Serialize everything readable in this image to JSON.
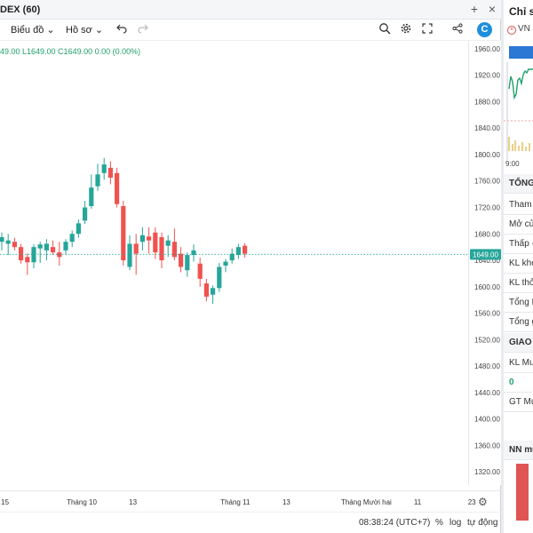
{
  "window": {
    "title": "DEX (60)",
    "add_label": "+",
    "close_label": "×"
  },
  "toolbar": {
    "chart_label": "Biểu đồ",
    "profile_label": "Hồ sơ",
    "chevron": "⌄",
    "undo_icon": "undo-icon",
    "redo_icon": "redo-icon"
  },
  "ohlc": {
    "text": "49.00  L1649.00  C1649.00  0.00 (0.00%)"
  },
  "chart_data": {
    "type": "candlestick",
    "y_ticks": [
      1960,
      1920,
      1880,
      1840,
      1800,
      1760,
      1720,
      1680,
      1640,
      1600,
      1560,
      1520,
      1480,
      1440,
      1400,
      1360,
      1320
    ],
    "ylim": [
      1300,
      1972
    ],
    "last_price": "1649.00",
    "last_price_value": 1649,
    "x_ticks": [
      {
        "label": "15",
        "i": 0.5
      },
      {
        "label": "Tháng 10",
        "i": 12.5
      },
      {
        "label": "13",
        "i": 20.5
      },
      {
        "label": "Tháng 11",
        "i": 36.5
      },
      {
        "label": "13",
        "i": 44.5
      },
      {
        "label": "Tháng Mười hai",
        "i": 57
      },
      {
        "label": "11",
        "i": 65
      },
      {
        "label": "23",
        "i": 73.5
      }
    ],
    "candles": [
      {
        "o": 1668,
        "h": 1682,
        "l": 1655,
        "c": 1675
      },
      {
        "o": 1665,
        "h": 1680,
        "l": 1648,
        "c": 1670
      },
      {
        "o": 1668,
        "h": 1674,
        "l": 1655,
        "c": 1660
      },
      {
        "o": 1660,
        "h": 1665,
        "l": 1635,
        "c": 1640
      },
      {
        "o": 1645,
        "h": 1650,
        "l": 1618,
        "c": 1637
      },
      {
        "o": 1637,
        "h": 1664,
        "l": 1628,
        "c": 1660
      },
      {
        "o": 1658,
        "h": 1668,
        "l": 1636,
        "c": 1664
      },
      {
        "o": 1655,
        "h": 1672,
        "l": 1640,
        "c": 1665
      },
      {
        "o": 1660,
        "h": 1670,
        "l": 1648,
        "c": 1652
      },
      {
        "o": 1652,
        "h": 1668,
        "l": 1632,
        "c": 1645
      },
      {
        "o": 1655,
        "h": 1672,
        "l": 1648,
        "c": 1668
      },
      {
        "o": 1668,
        "h": 1685,
        "l": 1660,
        "c": 1680
      },
      {
        "o": 1680,
        "h": 1702,
        "l": 1674,
        "c": 1696
      },
      {
        "o": 1700,
        "h": 1730,
        "l": 1695,
        "c": 1720
      },
      {
        "o": 1722,
        "h": 1770,
        "l": 1718,
        "c": 1750
      },
      {
        "o": 1752,
        "h": 1786,
        "l": 1745,
        "c": 1770
      },
      {
        "o": 1772,
        "h": 1795,
        "l": 1762,
        "c": 1785
      },
      {
        "o": 1780,
        "h": 1790,
        "l": 1755,
        "c": 1765
      },
      {
        "o": 1772,
        "h": 1780,
        "l": 1720,
        "c": 1725
      },
      {
        "o": 1722,
        "h": 1730,
        "l": 1632,
        "c": 1640
      },
      {
        "o": 1630,
        "h": 1678,
        "l": 1625,
        "c": 1665
      },
      {
        "o": 1665,
        "h": 1680,
        "l": 1618,
        "c": 1650
      },
      {
        "o": 1668,
        "h": 1690,
        "l": 1655,
        "c": 1678
      },
      {
        "o": 1676,
        "h": 1690,
        "l": 1650,
        "c": 1670
      },
      {
        "o": 1682,
        "h": 1690,
        "l": 1642,
        "c": 1652
      },
      {
        "o": 1675,
        "h": 1682,
        "l": 1628,
        "c": 1640
      },
      {
        "o": 1662,
        "h": 1678,
        "l": 1645,
        "c": 1670
      },
      {
        "o": 1668,
        "h": 1688,
        "l": 1640,
        "c": 1645
      },
      {
        "o": 1650,
        "h": 1660,
        "l": 1622,
        "c": 1630
      },
      {
        "o": 1625,
        "h": 1652,
        "l": 1615,
        "c": 1648
      },
      {
        "o": 1648,
        "h": 1664,
        "l": 1638,
        "c": 1655
      },
      {
        "o": 1635,
        "h": 1644,
        "l": 1600,
        "c": 1612
      },
      {
        "o": 1605,
        "h": 1612,
        "l": 1578,
        "c": 1585
      },
      {
        "o": 1588,
        "h": 1602,
        "l": 1574,
        "c": 1598
      },
      {
        "o": 1598,
        "h": 1636,
        "l": 1592,
        "c": 1630
      },
      {
        "o": 1632,
        "h": 1642,
        "l": 1622,
        "c": 1638
      },
      {
        "o": 1640,
        "h": 1658,
        "l": 1635,
        "c": 1650
      },
      {
        "o": 1648,
        "h": 1665,
        "l": 1642,
        "c": 1660
      },
      {
        "o": 1662,
        "h": 1666,
        "l": 1644,
        "c": 1650
      }
    ]
  },
  "xaxis": {
    "settings_icon": "gear-icon"
  },
  "status": {
    "time": "08:38:24 (UTC+7)",
    "percent": "%",
    "log": "log",
    "auto": "tự động"
  },
  "side": {
    "header": "Chỉ số",
    "index_name": "VN",
    "time_label": "9:00",
    "rows": [
      {
        "label": "TỔNG",
        "style": "bold"
      },
      {
        "label": "Tham c",
        "style": ""
      },
      {
        "label": "Mở cửa",
        "style": ""
      },
      {
        "label": "Thấp -",
        "style": ""
      },
      {
        "label": "KL khớ",
        "style": ""
      },
      {
        "label": "KL thỏa",
        "style": ""
      },
      {
        "label": "Tổng K",
        "style": ""
      },
      {
        "label": "Tổng g",
        "style": ""
      },
      {
        "label": "GIAO",
        "style": "bold"
      },
      {
        "label": "KL Mua",
        "style": ""
      },
      {
        "label": "0",
        "style": "green"
      },
      {
        "label": "GT Mu",
        "style": ""
      }
    ],
    "foreign_label": "NN mu"
  },
  "colors": {
    "up": "#26a69a",
    "down": "#ef5350",
    "up_text": "#22a06b",
    "price_tag": "#26a69a",
    "accent": "#2a77d4"
  }
}
